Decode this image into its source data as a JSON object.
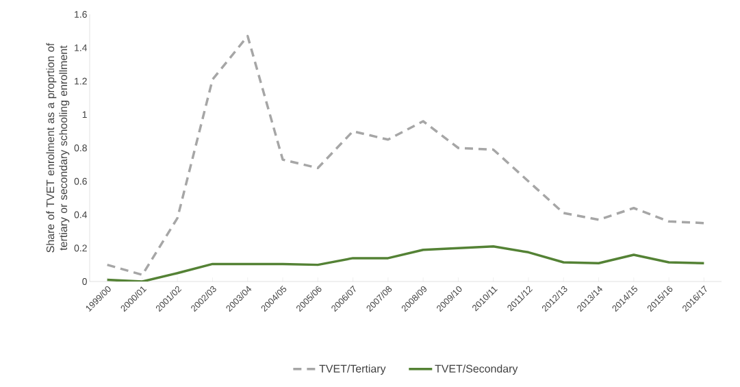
{
  "chart_data": {
    "type": "line",
    "ylabel": "Share of TVET enrolment as a proprtion of tertiary or secondary schooling enrollment",
    "categories": [
      "1999/00",
      "2000/01",
      "2001/02",
      "2002/03",
      "2003/04",
      "2004/05",
      "2005/06",
      "2006/07",
      "2007/08",
      "2008/09",
      "2009/10",
      "2010/11",
      "2011/12",
      "2012/13",
      "2013/14",
      "2014/15",
      "2015/16",
      "2016/17"
    ],
    "series": [
      {
        "name": "TVET/Tertiary",
        "color": "#a6a6a6",
        "line_style": "dashed",
        "values": [
          0.1,
          0.04,
          0.38,
          1.21,
          1.47,
          0.73,
          0.68,
          0.9,
          0.85,
          0.96,
          0.8,
          0.79,
          0.6,
          0.41,
          0.37,
          0.44,
          0.36,
          0.35
        ]
      },
      {
        "name": "TVET/Secondary",
        "color": "#548235",
        "line_style": "solid",
        "values": [
          0.01,
          0,
          0.05,
          0.105,
          0.105,
          0.105,
          0.1,
          0.14,
          0.14,
          0.19,
          0.2,
          0.21,
          0.175,
          0.115,
          0.11,
          0.16,
          0.115,
          0.11
        ]
      }
    ],
    "ylim": [
      0,
      1.6
    ],
    "yticks": [
      0,
      0.2,
      0.4,
      0.6,
      0.8,
      1,
      1.2,
      1.4,
      1.6
    ],
    "grid": false,
    "legend": "bottom",
    "marker": "none"
  }
}
